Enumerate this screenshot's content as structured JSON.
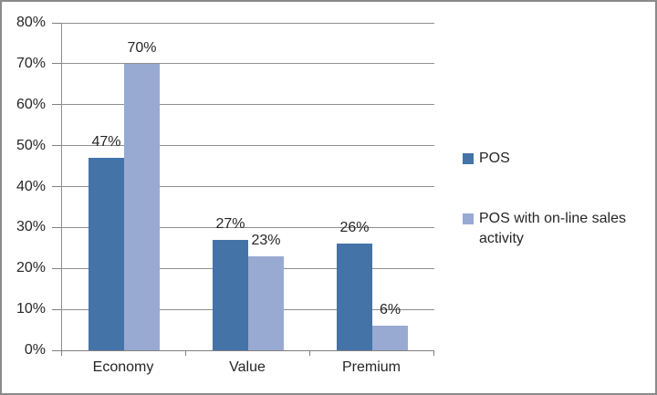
{
  "chart_data": {
    "type": "bar",
    "title": "",
    "xlabel": "",
    "ylabel": "",
    "categories": [
      "Economy",
      "Value",
      "Premium"
    ],
    "series": [
      {
        "name": "POS",
        "color": "#4473a8",
        "values": [
          47,
          27,
          26
        ],
        "data_labels": [
          "47%",
          "27%",
          "26%"
        ]
      },
      {
        "name": "POS with on-line sales activity",
        "color": "#98aad2",
        "values": [
          70,
          23,
          6
        ],
        "data_labels": [
          "70%",
          "23%",
          "6%"
        ]
      }
    ],
    "ylim": [
      0,
      80
    ],
    "ytick_step": 10,
    "ytick_labels": [
      "0%",
      "10%",
      "20%",
      "30%",
      "40%",
      "50%",
      "60%",
      "70%",
      "80%"
    ],
    "grid": true,
    "legend_position": "right",
    "colors": {
      "gridline": "#8f8f8f",
      "axis": "#808080",
      "text": "#262626",
      "frame_border": "#8a8a8a",
      "background": "#ffffff"
    }
  }
}
